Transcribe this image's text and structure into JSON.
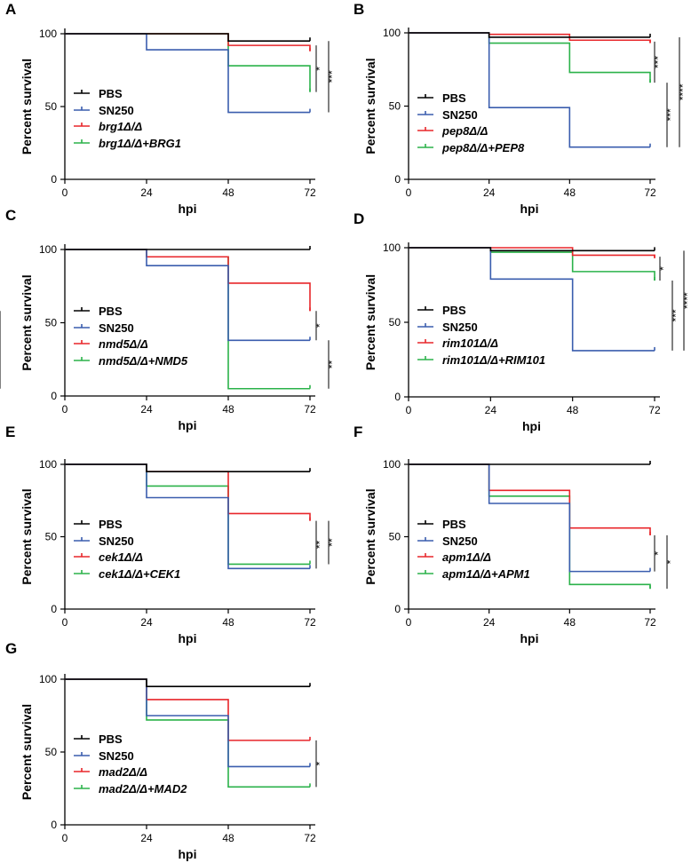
{
  "colors": {
    "PBS": "#000000",
    "SN250": "#3a5dae",
    "mutant": "#e8262a",
    "complement": "#2bb24a"
  },
  "chart_data": [
    {
      "type": "line",
      "label": "A",
      "xlabel": "hpi",
      "ylabel": "Percent survival",
      "xticks": [
        "0",
        "24",
        "48",
        "72"
      ],
      "yticks": [
        "0",
        "50",
        "100"
      ],
      "xlim": [
        0,
        72
      ],
      "ylim": [
        0,
        100
      ],
      "legend": [
        "PBS",
        "SN250",
        "brg1Δ/Δ",
        "brg1Δ/Δ+BRG1"
      ],
      "series": [
        {
          "name": "PBS",
          "color_key": "PBS",
          "x": [
            0,
            48,
            72
          ],
          "y": [
            100,
            95,
            95
          ]
        },
        {
          "name": "SN250",
          "color_key": "SN250",
          "x": [
            0,
            24,
            48,
            72
          ],
          "y": [
            100,
            89,
            46,
            46
          ]
        },
        {
          "name": "brg1Δ/Δ",
          "color_key": "mutant",
          "x": [
            0,
            48,
            72
          ],
          "y": [
            100,
            92,
            88
          ]
        },
        {
          "name": "brg1Δ/Δ+BRG1",
          "color_key": "complement",
          "x": [
            0,
            48,
            72
          ],
          "y": [
            100,
            78,
            60
          ]
        }
      ],
      "sig": [
        {
          "from": 92,
          "to": 60,
          "label": "*"
        },
        {
          "from": 95,
          "to": 46,
          "label": "***"
        }
      ]
    },
    {
      "type": "line",
      "label": "B",
      "xlabel": "hpi",
      "ylabel": "Percent survival",
      "xticks": [
        "0",
        "24",
        "48",
        "72"
      ],
      "yticks": [
        "0",
        "50",
        "100"
      ],
      "xlim": [
        0,
        72
      ],
      "ylim": [
        0,
        100
      ],
      "legend": [
        "PBS",
        "SN250",
        "pep8Δ/Δ",
        "pep8Δ/Δ+PEP8"
      ],
      "series": [
        {
          "name": "PBS",
          "color_key": "PBS",
          "x": [
            0,
            24,
            48,
            72
          ],
          "y": [
            100,
            97,
            97,
            97
          ]
        },
        {
          "name": "SN250",
          "color_key": "SN250",
          "x": [
            0,
            24,
            48,
            72
          ],
          "y": [
            100,
            49,
            22,
            22
          ]
        },
        {
          "name": "pep8Δ/Δ",
          "color_key": "mutant",
          "x": [
            0,
            24,
            48,
            72
          ],
          "y": [
            100,
            99,
            95,
            93
          ]
        },
        {
          "name": "pep8Δ/Δ+PEP8",
          "color_key": "complement",
          "x": [
            0,
            24,
            48,
            72
          ],
          "y": [
            100,
            93,
            73,
            66
          ]
        }
      ],
      "sig": [
        {
          "from": 94,
          "to": 66,
          "label": "***"
        },
        {
          "from": 66,
          "to": 22,
          "label": "***"
        },
        {
          "from": 97,
          "to": 22,
          "label": "****"
        }
      ]
    },
    {
      "type": "line",
      "label": "C",
      "xlabel": "hpi",
      "ylabel": "Percent survival",
      "xticks": [
        "0",
        "24",
        "48",
        "72"
      ],
      "yticks": [
        "0",
        "50",
        "100"
      ],
      "xlim": [
        0,
        72
      ],
      "ylim": [
        0,
        100
      ],
      "legend": [
        "PBS",
        "SN250",
        "nmd5Δ/Δ",
        "nmd5Δ/Δ+NMD5"
      ],
      "series": [
        {
          "name": "PBS",
          "color_key": "PBS",
          "x": [
            0,
            72
          ],
          "y": [
            100,
            100
          ]
        },
        {
          "name": "SN250",
          "color_key": "SN250",
          "x": [
            0,
            24,
            48,
            72
          ],
          "y": [
            100,
            89,
            38,
            38
          ]
        },
        {
          "name": "nmd5Δ/Δ",
          "color_key": "mutant",
          "x": [
            0,
            24,
            48,
            72
          ],
          "y": [
            100,
            95,
            77,
            58
          ]
        },
        {
          "name": "nmd5Δ/Δ+NMD5",
          "color_key": "complement",
          "x": [
            0,
            24,
            48,
            72
          ],
          "y": [
            100,
            95,
            5,
            5
          ]
        }
      ],
      "sig": [
        {
          "from": 58,
          "to": 38,
          "label": "*"
        },
        {
          "from": 38,
          "to": 5,
          "label": "**"
        },
        {
          "from": 58,
          "to": 5,
          "label": "***"
        }
      ]
    },
    {
      "type": "line",
      "label": "D",
      "xlabel": "hpi",
      "ylabel": "Percent survival",
      "xticks": [
        "0",
        "24",
        "48",
        "72"
      ],
      "yticks": [
        "0",
        "50",
        "100"
      ],
      "xlim": [
        0,
        72
      ],
      "ylim": [
        0,
        100
      ],
      "legend": [
        "PBS",
        "SN250",
        "rim101Δ/Δ",
        "rim101Δ/Δ+RIM101"
      ],
      "series": [
        {
          "name": "PBS",
          "color_key": "PBS",
          "x": [
            0,
            24,
            72
          ],
          "y": [
            100,
            98,
            98
          ]
        },
        {
          "name": "SN250",
          "color_key": "SN250",
          "x": [
            0,
            24,
            48,
            72
          ],
          "y": [
            100,
            79,
            31,
            31
          ]
        },
        {
          "name": "rim101Δ/Δ",
          "color_key": "mutant",
          "x": [
            0,
            48,
            72
          ],
          "y": [
            100,
            95,
            93
          ]
        },
        {
          "name": "rim101Δ/Δ+RIM101",
          "color_key": "complement",
          "x": [
            0,
            24,
            48,
            72
          ],
          "y": [
            100,
            97,
            84,
            78
          ]
        }
      ],
      "sig": [
        {
          "from": 94,
          "to": 78,
          "label": "*"
        },
        {
          "from": 78,
          "to": 31,
          "label": "***"
        },
        {
          "from": 98,
          "to": 31,
          "label": "****"
        }
      ]
    },
    {
      "type": "line",
      "label": "E",
      "xlabel": "hpi",
      "ylabel": "Percent survival",
      "xticks": [
        "0",
        "24",
        "48",
        "72"
      ],
      "yticks": [
        "0",
        "50",
        "100"
      ],
      "xlim": [
        0,
        72
      ],
      "ylim": [
        0,
        100
      ],
      "legend": [
        "PBS",
        "SN250",
        "cek1Δ/Δ",
        "cek1Δ/Δ+CEK1"
      ],
      "series": [
        {
          "name": "PBS",
          "color_key": "PBS",
          "x": [
            0,
            24,
            72
          ],
          "y": [
            100,
            95,
            95
          ]
        },
        {
          "name": "SN250",
          "color_key": "SN250",
          "x": [
            0,
            24,
            48,
            72
          ],
          "y": [
            100,
            77,
            28,
            28
          ]
        },
        {
          "name": "cek1Δ/Δ",
          "color_key": "mutant",
          "x": [
            0,
            24,
            48,
            72
          ],
          "y": [
            100,
            95,
            66,
            61
          ]
        },
        {
          "name": "cek1Δ/Δ+CEK1",
          "color_key": "complement",
          "x": [
            0,
            24,
            48,
            72
          ],
          "y": [
            100,
            85,
            31,
            31
          ]
        }
      ],
      "sig": [
        {
          "from": 61,
          "to": 28,
          "label": "**"
        },
        {
          "from": 61,
          "to": 31,
          "label": "**"
        }
      ]
    },
    {
      "type": "line",
      "label": "F",
      "xlabel": "hpi",
      "ylabel": "Percent survival",
      "xticks": [
        "0",
        "24",
        "48",
        "72"
      ],
      "yticks": [
        "0",
        "50",
        "100"
      ],
      "xlim": [
        0,
        72
      ],
      "ylim": [
        0,
        100
      ],
      "legend": [
        "PBS",
        "SN250",
        "apm1Δ/Δ",
        "apm1Δ/Δ+APM1"
      ],
      "series": [
        {
          "name": "PBS",
          "color_key": "PBS",
          "x": [
            0,
            72
          ],
          "y": [
            100,
            100
          ]
        },
        {
          "name": "SN250",
          "color_key": "SN250",
          "x": [
            0,
            24,
            48,
            72
          ],
          "y": [
            100,
            73,
            26,
            26
          ]
        },
        {
          "name": "apm1Δ/Δ",
          "color_key": "mutant",
          "x": [
            0,
            24,
            48,
            72
          ],
          "y": [
            100,
            82,
            56,
            51
          ]
        },
        {
          "name": "apm1Δ/Δ+APM1",
          "color_key": "complement",
          "x": [
            0,
            24,
            48,
            72
          ],
          "y": [
            100,
            78,
            17,
            14
          ]
        }
      ],
      "sig": [
        {
          "from": 51,
          "to": 26,
          "label": "*"
        },
        {
          "from": 51,
          "to": 14,
          "label": "*"
        }
      ]
    },
    {
      "type": "line",
      "label": "G",
      "xlabel": "hpi",
      "ylabel": "Percent survival",
      "xticks": [
        "0",
        "24",
        "48",
        "72"
      ],
      "yticks": [
        "0",
        "50",
        "100"
      ],
      "xlim": [
        0,
        72
      ],
      "ylim": [
        0,
        100
      ],
      "legend": [
        "PBS",
        "SN250",
        "mad2Δ/Δ",
        "mad2Δ/Δ+MAD2"
      ],
      "series": [
        {
          "name": "PBS",
          "color_key": "PBS",
          "x": [
            0,
            24,
            72
          ],
          "y": [
            100,
            95,
            95
          ]
        },
        {
          "name": "SN250",
          "color_key": "SN250",
          "x": [
            0,
            24,
            48,
            72
          ],
          "y": [
            100,
            75,
            40,
            40
          ]
        },
        {
          "name": "mad2Δ/Δ",
          "color_key": "mutant",
          "x": [
            0,
            24,
            48,
            72
          ],
          "y": [
            100,
            86,
            58,
            58
          ]
        },
        {
          "name": "mad2Δ/Δ+MAD2",
          "color_key": "complement",
          "x": [
            0,
            24,
            48,
            72
          ],
          "y": [
            100,
            72,
            26,
            26
          ]
        }
      ],
      "sig": [
        {
          "from": 58,
          "to": 26,
          "label": "*"
        }
      ]
    }
  ]
}
